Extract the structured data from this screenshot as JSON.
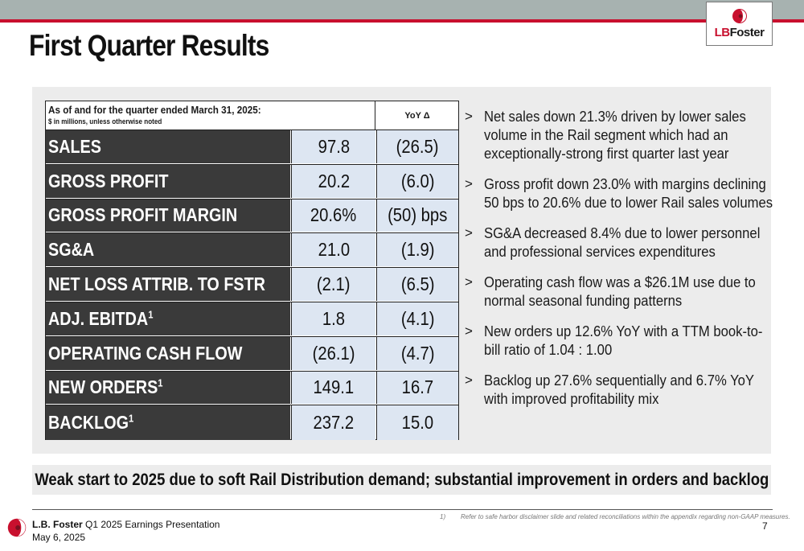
{
  "slide": {
    "title": "First Quarter Results",
    "logo_text_lb": "LB",
    "logo_text_foster": "Foster"
  },
  "table": {
    "header_title": "As of and for the quarter ended March 31, 2025:",
    "header_subtitle": "$ in millions, unless otherwise noted",
    "header_yoy": "YoY Δ",
    "rows": [
      {
        "label": "SALES",
        "sup": "",
        "value": "97.8",
        "yoy": "(26.5)"
      },
      {
        "label": "GROSS PROFIT",
        "sup": "",
        "value": "20.2",
        "yoy": "(6.0)"
      },
      {
        "label": "GROSS PROFIT MARGIN",
        "sup": "",
        "value": "20.6%",
        "yoy": "(50) bps"
      },
      {
        "label": "SG&A",
        "sup": "",
        "value": "21.0",
        "yoy": "(1.9)"
      },
      {
        "label": "NET LOSS ATTRIB. TO FSTR",
        "sup": "",
        "value": "(2.1)",
        "yoy": "(6.5)"
      },
      {
        "label": "ADJ. EBITDA",
        "sup": "1",
        "value": "1.8",
        "yoy": "(4.1)"
      },
      {
        "label": "OPERATING CASH FLOW",
        "sup": "",
        "value": "(26.1)",
        "yoy": "(4.7)"
      },
      {
        "label": "NEW ORDERS",
        "sup": "1",
        "value": "149.1",
        "yoy": "16.7"
      },
      {
        "label": "BACKLOG",
        "sup": "1",
        "value": "237.2",
        "yoy": "15.0"
      }
    ]
  },
  "bullets": {
    "marker": ">",
    "items": [
      "Net sales down 21.3% driven by lower sales volume in the Rail segment which had an exceptionally-strong first quarter last year",
      "Gross profit down 23.0% with margins declining 50 bps to 20.6% due to lower Rail sales volumes",
      "SG&A decreased 8.4% due to lower personnel and professional services expenditures",
      "Operating cash flow was a $26.1M use due to normal seasonal funding patterns",
      "New orders up 12.6% YoY with a TTM book-to-bill ratio of 1.04 : 1.00",
      "Backlog up 27.6% sequentially and 6.7% YoY with improved profitability mix"
    ]
  },
  "banner": {
    "text": "Weak start to 2025 due to soft Rail Distribution demand; substantial improvement in orders and backlog"
  },
  "footer": {
    "company": "L.B. Foster",
    "presentation": "Q1 2025 Earnings Presentation",
    "date": "May 6, 2025",
    "footnote_num": "1)",
    "footnote_text": "Refer to safe harbor disclaimer slide and related reconciliations within the appendix regarding non-GAAP measures.",
    "page_number": "7"
  },
  "colors": {
    "accent_red": "#c8102e",
    "top_bar_gray": "#a7b2b0",
    "label_cell_dark": "#3a3a3a",
    "value_cell_blue": "#dde6f2",
    "panel_gray": "#ececec"
  },
  "icons": [
    "lbfoster-logo-icon"
  ]
}
